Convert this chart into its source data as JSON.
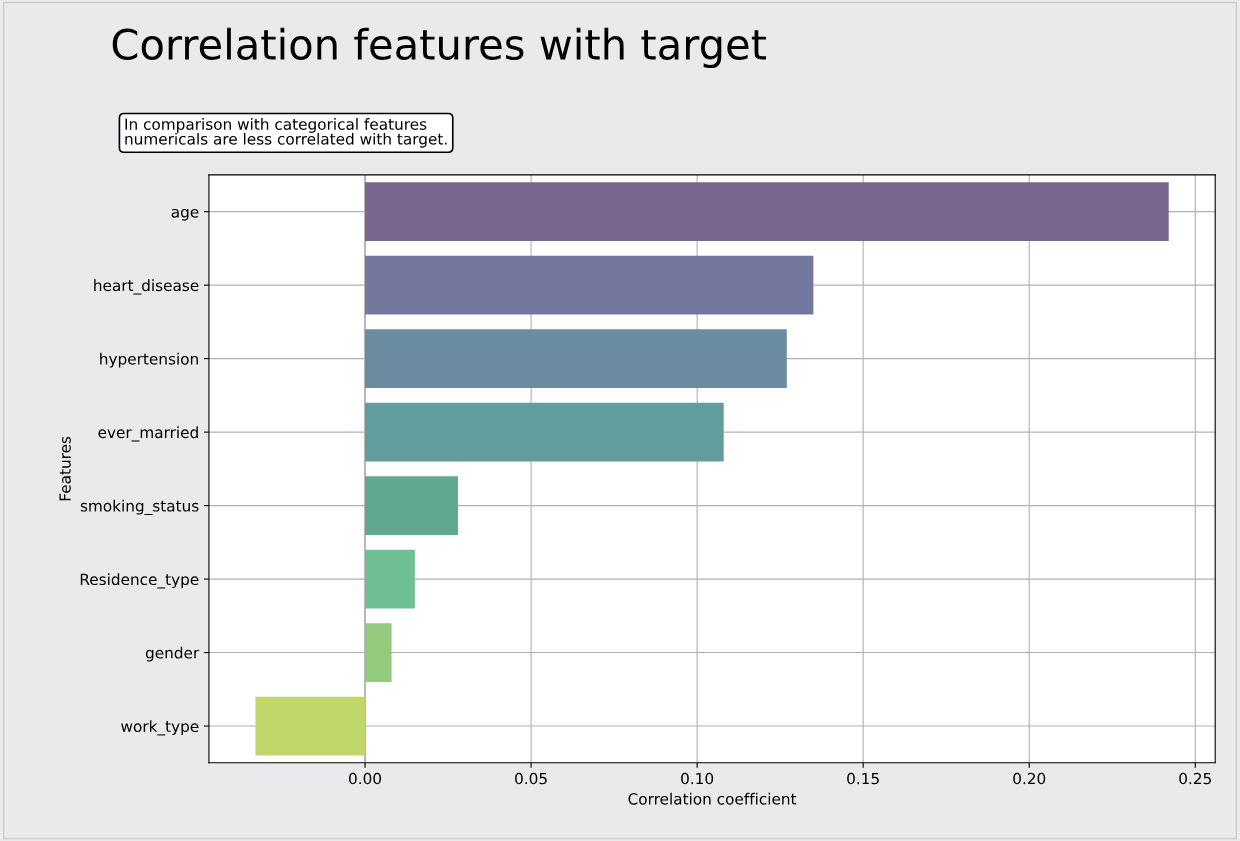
{
  "chart_data": {
    "type": "bar",
    "orientation": "horizontal",
    "title": "Correlation features with target",
    "annotations": [
      "In comparison with categorical features\nnumericals are less correlated with target."
    ],
    "xlabel": "Correlation coefficient",
    "ylabel": "Features",
    "categories": [
      "age",
      "heart_disease",
      "hypertension",
      "ever_married",
      "smoking_status",
      "Residence_type",
      "gender",
      "work_type"
    ],
    "values": [
      0.242,
      0.135,
      0.127,
      0.108,
      0.028,
      0.015,
      0.008,
      -0.033
    ],
    "colors": [
      "#78668f",
      "#74789f",
      "#6a8ba0",
      "#629c9d",
      "#5ea98f",
      "#6fbf94",
      "#93cb7e",
      "#c0d76a"
    ],
    "xlim": [
      -0.047,
      0.256
    ],
    "xticks": [
      {
        "value": 0,
        "label": "0.00"
      },
      {
        "value": 0.05,
        "label": "0.05"
      },
      {
        "value": 0.1,
        "label": "0.10"
      },
      {
        "value": 0.15,
        "label": "0.15"
      },
      {
        "value": 0.2,
        "label": "0.20"
      },
      {
        "value": 0.25,
        "label": "0.25"
      }
    ],
    "grid": true
  }
}
